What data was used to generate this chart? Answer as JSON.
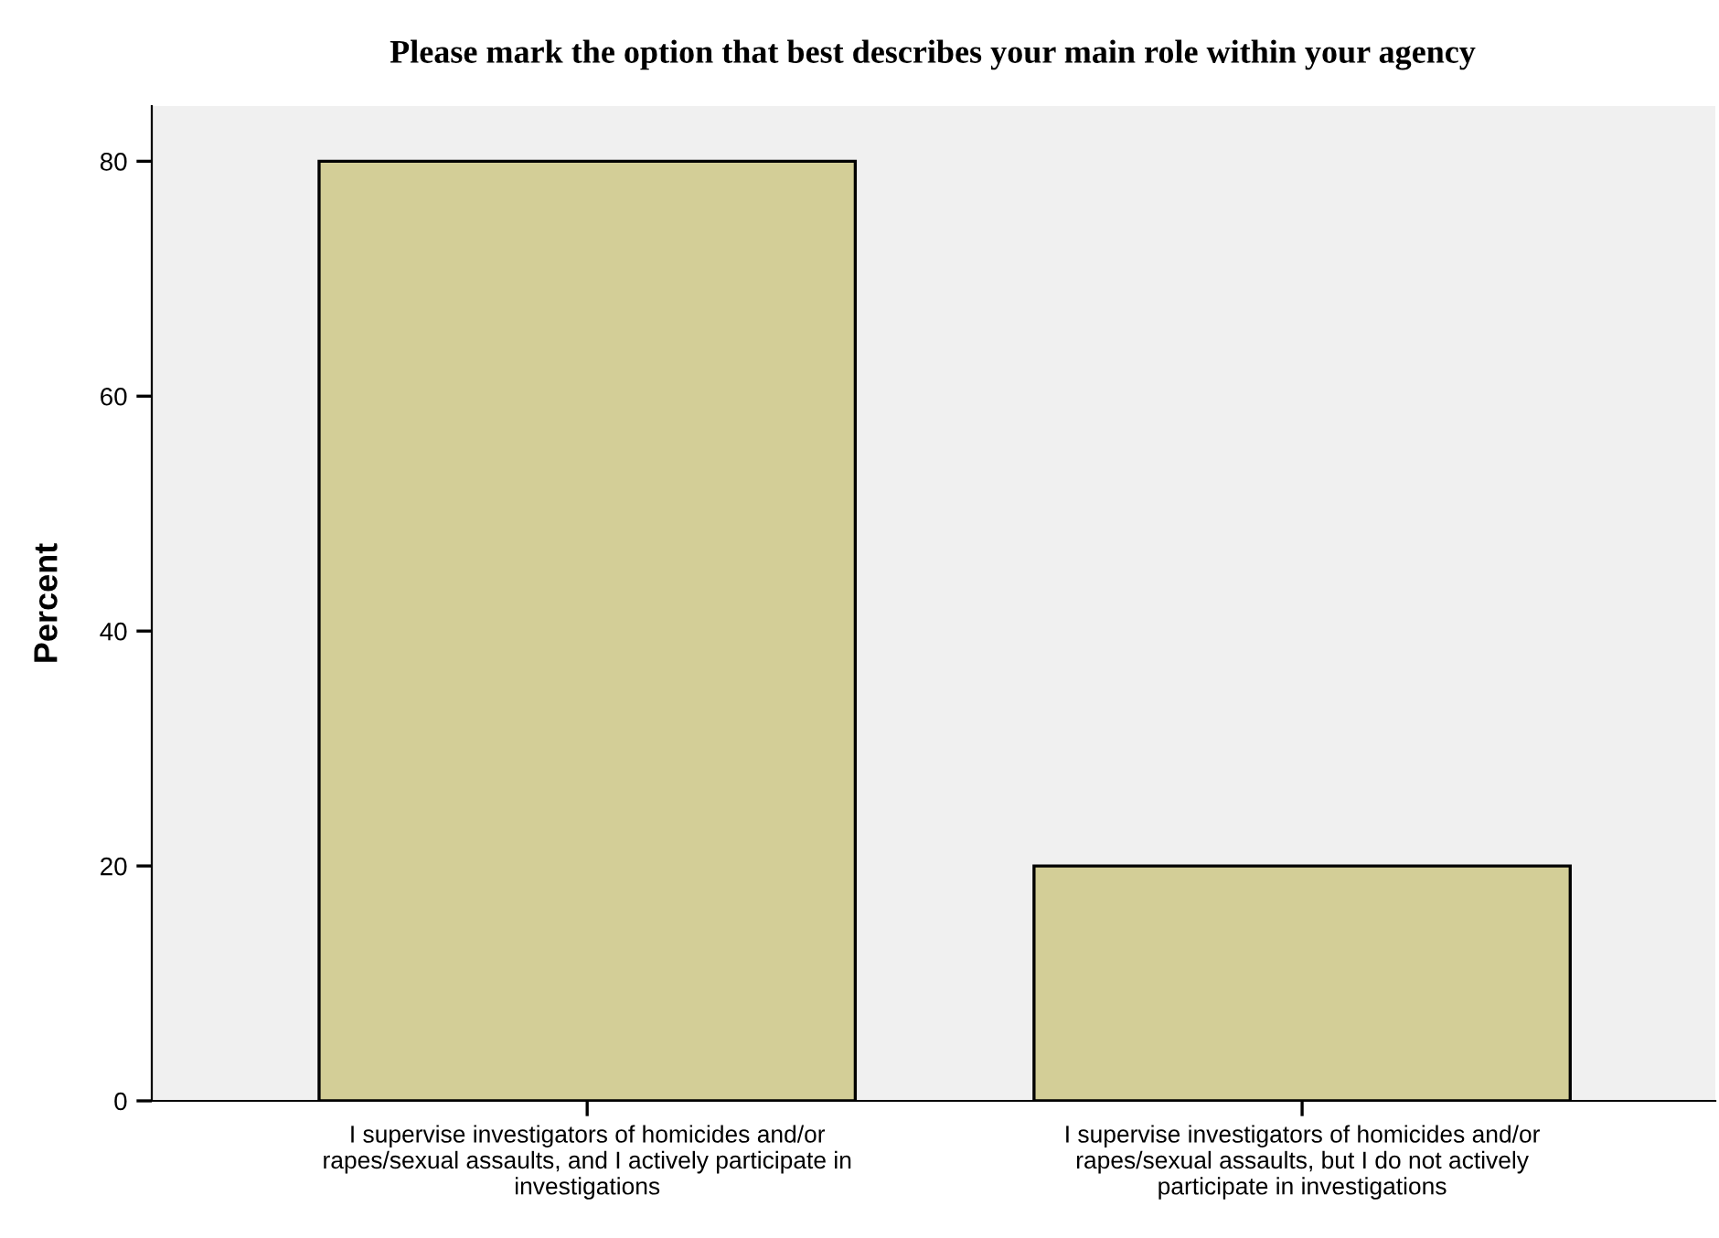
{
  "chart_data": {
    "type": "bar",
    "title": "Please mark the option that best describes your main role within your agency",
    "ylabel": "Percent",
    "categories": [
      "I supervise investigators of homicides and/or\nrapes/sexual assaults, and I actively participate in\ninvestigations",
      "I supervise investigators of homicides and/or\nrapes/sexual assaults, but I do not actively\nparticipate in investigations"
    ],
    "values": [
      80,
      20
    ],
    "color": "#d3ce97",
    "ylim": [
      0,
      84.7
    ],
    "yticks": [
      0,
      20,
      40,
      60,
      80
    ],
    "grid": false
  }
}
